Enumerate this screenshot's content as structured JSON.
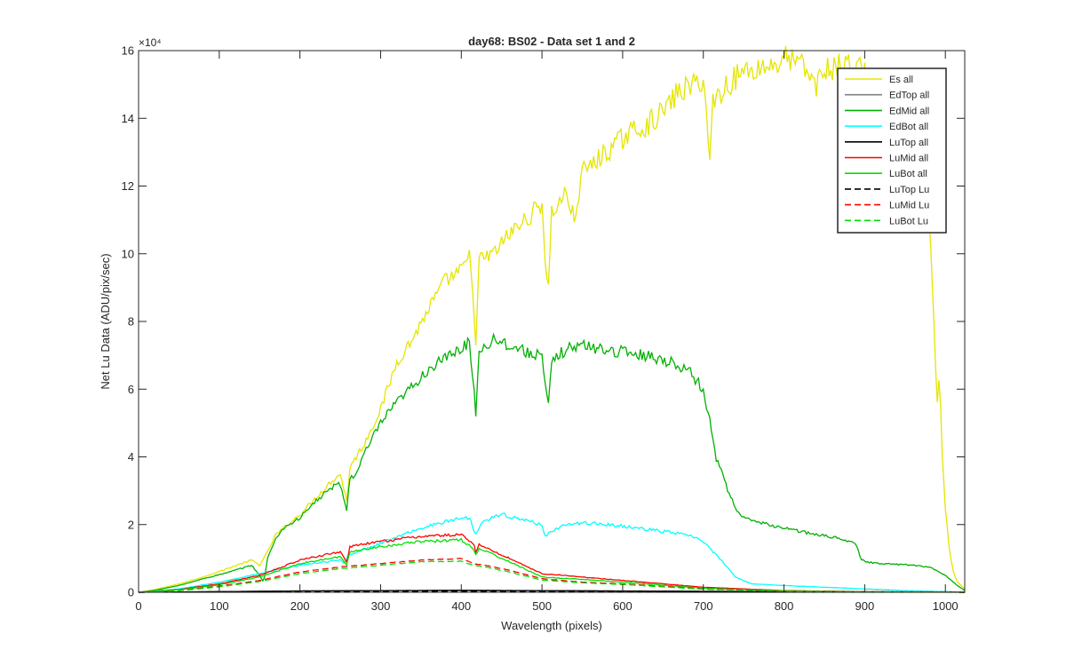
{
  "chart_data": {
    "type": "line",
    "title": "day68: BS02 - Data set 1 and 2",
    "xlabel": "Wavelength (pixels)",
    "ylabel": "Net Lu Data (ADU/pix/sec)",
    "xlim": [
      0,
      1024
    ],
    "ylim": [
      0,
      160000
    ],
    "x_ticks": [
      0,
      100,
      200,
      300,
      400,
      500,
      600,
      700,
      800,
      900,
      1000
    ],
    "y_ticks": [
      0,
      2,
      4,
      6,
      8,
      10,
      12,
      14,
      16
    ],
    "y_tick_labels": [
      "0",
      "2",
      "4",
      "6",
      "8",
      "10",
      "12",
      "14",
      "16"
    ],
    "y_exponent_label": "×10⁴",
    "y_scale_factor": 10000,
    "grid": false,
    "legend_position": "top-right",
    "series": [
      {
        "name": "Es  all",
        "color": "#E5E500",
        "dash": "solid",
        "points": [
          [
            0,
            0
          ],
          [
            20,
            800
          ],
          [
            50,
            2500
          ],
          [
            80,
            4500
          ],
          [
            110,
            7000
          ],
          [
            140,
            9500
          ],
          [
            150,
            8000
          ],
          [
            160,
            12000
          ],
          [
            170,
            17000
          ],
          [
            180,
            19000
          ],
          [
            200,
            23000
          ],
          [
            220,
            28000
          ],
          [
            240,
            33000
          ],
          [
            250,
            35000
          ],
          [
            255,
            30000
          ],
          [
            258,
            27000
          ],
          [
            262,
            37000
          ],
          [
            270,
            40000
          ],
          [
            280,
            44000
          ],
          [
            300,
            54000
          ],
          [
            320,
            68000
          ],
          [
            340,
            75000
          ],
          [
            360,
            84000
          ],
          [
            380,
            92000
          ],
          [
            400,
            95000
          ],
          [
            410,
            99000
          ],
          [
            415,
            88000
          ],
          [
            418,
            72000
          ],
          [
            422,
            98000
          ],
          [
            440,
            100000
          ],
          [
            460,
            106000
          ],
          [
            480,
            110000
          ],
          [
            500,
            115000
          ],
          [
            505,
            95000
          ],
          [
            508,
            90000
          ],
          [
            512,
            112000
          ],
          [
            530,
            118000
          ],
          [
            540,
            110000
          ],
          [
            550,
            124000
          ],
          [
            570,
            128000
          ],
          [
            590,
            132000
          ],
          [
            610,
            136000
          ],
          [
            630,
            138000
          ],
          [
            650,
            142000
          ],
          [
            670,
            148000
          ],
          [
            690,
            150000
          ],
          [
            700,
            152000
          ],
          [
            708,
            128000
          ],
          [
            712,
            145000
          ],
          [
            730,
            150000
          ],
          [
            750,
            154000
          ],
          [
            770,
            155000
          ],
          [
            790,
            156000
          ],
          [
            800,
            158000
          ],
          [
            820,
            156000
          ],
          [
            840,
            150000
          ],
          [
            850,
            154000
          ],
          [
            860,
            155000
          ],
          [
            880,
            156000
          ],
          [
            900,
            154000
          ],
          [
            920,
            150000
          ],
          [
            940,
            145000
          ],
          [
            960,
            135000
          ],
          [
            970,
            122000
          ],
          [
            980,
            110000
          ],
          [
            984,
            90000
          ],
          [
            987,
            70000
          ],
          [
            990,
            57000
          ],
          [
            993,
            66000
          ],
          [
            995,
            45000
          ],
          [
            1000,
            25000
          ],
          [
            1005,
            12000
          ],
          [
            1010,
            6000
          ],
          [
            1015,
            3000
          ],
          [
            1024,
            1000
          ]
        ]
      },
      {
        "name": "EdTop  all",
        "color": "#808080",
        "dash": "solid",
        "points": [
          [
            0,
            0
          ],
          [
            100,
            200
          ],
          [
            200,
            400
          ],
          [
            300,
            500
          ],
          [
            400,
            500
          ],
          [
            500,
            400
          ],
          [
            600,
            300
          ],
          [
            700,
            200
          ],
          [
            800,
            150
          ],
          [
            900,
            100
          ],
          [
            1000,
            50
          ],
          [
            1024,
            0
          ]
        ]
      },
      {
        "name": "EdMid  all",
        "color": "#00B000",
        "dash": "solid",
        "points": [
          [
            0,
            0
          ],
          [
            20,
            600
          ],
          [
            50,
            2000
          ],
          [
            80,
            4000
          ],
          [
            110,
            5800
          ],
          [
            140,
            8000
          ],
          [
            150,
            5000
          ],
          [
            155,
            3000
          ],
          [
            160,
            10000
          ],
          [
            170,
            16000
          ],
          [
            180,
            19000
          ],
          [
            200,
            22000
          ],
          [
            220,
            27000
          ],
          [
            240,
            31000
          ],
          [
            250,
            32000
          ],
          [
            255,
            27000
          ],
          [
            258,
            24000
          ],
          [
            262,
            34000
          ],
          [
            270,
            35000
          ],
          [
            280,
            41000
          ],
          [
            300,
            50000
          ],
          [
            320,
            56000
          ],
          [
            340,
            61000
          ],
          [
            360,
            66000
          ],
          [
            380,
            69000
          ],
          [
            400,
            72000
          ],
          [
            410,
            74000
          ],
          [
            415,
            62000
          ],
          [
            418,
            53000
          ],
          [
            422,
            71000
          ],
          [
            440,
            75000
          ],
          [
            460,
            73000
          ],
          [
            480,
            71000
          ],
          [
            500,
            70000
          ],
          [
            505,
            58000
          ],
          [
            508,
            55000
          ],
          [
            512,
            68000
          ],
          [
            530,
            72000
          ],
          [
            550,
            73000
          ],
          [
            570,
            72000
          ],
          [
            600,
            71000
          ],
          [
            630,
            70000
          ],
          [
            660,
            68000
          ],
          [
            680,
            66000
          ],
          [
            700,
            60000
          ],
          [
            710,
            48000
          ],
          [
            715,
            40000
          ],
          [
            720,
            38000
          ],
          [
            730,
            30000
          ],
          [
            745,
            23000
          ],
          [
            760,
            21000
          ],
          [
            800,
            19000
          ],
          [
            840,
            17000
          ],
          [
            870,
            16000
          ],
          [
            890,
            14000
          ],
          [
            895,
            10000
          ],
          [
            900,
            9000
          ],
          [
            920,
            8500
          ],
          [
            960,
            8000
          ],
          [
            980,
            7500
          ],
          [
            1000,
            5000
          ],
          [
            1015,
            2000
          ],
          [
            1024,
            500
          ]
        ]
      },
      {
        "name": "EdBot  all",
        "color": "#00FFFF",
        "dash": "solid",
        "points": [
          [
            0,
            0
          ],
          [
            50,
            1000
          ],
          [
            100,
            3000
          ],
          [
            150,
            5500
          ],
          [
            200,
            8000
          ],
          [
            250,
            9500
          ],
          [
            255,
            8500
          ],
          [
            260,
            11000
          ],
          [
            300,
            14500
          ],
          [
            350,
            19000
          ],
          [
            400,
            22000
          ],
          [
            410,
            22000
          ],
          [
            418,
            17000
          ],
          [
            425,
            21000
          ],
          [
            450,
            23000
          ],
          [
            500,
            20000
          ],
          [
            505,
            16000
          ],
          [
            510,
            18000
          ],
          [
            530,
            20000
          ],
          [
            560,
            20500
          ],
          [
            600,
            19500
          ],
          [
            650,
            18000
          ],
          [
            680,
            17000
          ],
          [
            700,
            15000
          ],
          [
            720,
            10000
          ],
          [
            740,
            4500
          ],
          [
            760,
            2500
          ],
          [
            800,
            2000
          ],
          [
            850,
            1500
          ],
          [
            900,
            1000
          ],
          [
            950,
            500
          ],
          [
            1000,
            200
          ],
          [
            1024,
            0
          ]
        ]
      },
      {
        "name": "LuTop  all",
        "color": "#000000",
        "dash": "solid",
        "points": [
          [
            0,
            0
          ],
          [
            100,
            200
          ],
          [
            200,
            400
          ],
          [
            300,
            500
          ],
          [
            400,
            600
          ],
          [
            500,
            500
          ],
          [
            600,
            400
          ],
          [
            700,
            300
          ],
          [
            800,
            200
          ],
          [
            900,
            100
          ],
          [
            1000,
            50
          ],
          [
            1024,
            0
          ]
        ]
      },
      {
        "name": "LuMid  all",
        "color": "#FF0000",
        "dash": "solid",
        "points": [
          [
            0,
            0
          ],
          [
            50,
            800
          ],
          [
            100,
            2500
          ],
          [
            150,
            5000
          ],
          [
            200,
            9500
          ],
          [
            250,
            12000
          ],
          [
            258,
            9000
          ],
          [
            262,
            13500
          ],
          [
            300,
            15000
          ],
          [
            350,
            16500
          ],
          [
            400,
            17000
          ],
          [
            415,
            14500
          ],
          [
            418,
            12000
          ],
          [
            422,
            14000
          ],
          [
            460,
            10000
          ],
          [
            500,
            5500
          ],
          [
            550,
            4500
          ],
          [
            600,
            3500
          ],
          [
            700,
            1500
          ],
          [
            800,
            500
          ],
          [
            900,
            200
          ],
          [
            1000,
            100
          ],
          [
            1024,
            0
          ]
        ]
      },
      {
        "name": "LuBot  all",
        "color": "#00E000",
        "dash": "solid",
        "points": [
          [
            0,
            0
          ],
          [
            50,
            700
          ],
          [
            100,
            2200
          ],
          [
            150,
            4500
          ],
          [
            200,
            8500
          ],
          [
            250,
            10500
          ],
          [
            258,
            8000
          ],
          [
            262,
            12000
          ],
          [
            300,
            13500
          ],
          [
            350,
            15000
          ],
          [
            400,
            15500
          ],
          [
            415,
            13000
          ],
          [
            418,
            11000
          ],
          [
            422,
            13000
          ],
          [
            460,
            9000
          ],
          [
            500,
            4500
          ],
          [
            550,
            3800
          ],
          [
            600,
            3000
          ],
          [
            700,
            1200
          ],
          [
            800,
            400
          ],
          [
            900,
            150
          ],
          [
            1000,
            80
          ],
          [
            1024,
            0
          ]
        ]
      },
      {
        "name": "LuTop  Lu",
        "color": "#000000",
        "dash": "dashed",
        "points": [
          [
            0,
            0
          ],
          [
            100,
            100
          ],
          [
            200,
            200
          ],
          [
            300,
            300
          ],
          [
            400,
            300
          ],
          [
            500,
            250
          ],
          [
            600,
            200
          ],
          [
            700,
            150
          ],
          [
            800,
            100
          ],
          [
            900,
            50
          ],
          [
            1000,
            30
          ],
          [
            1024,
            0
          ]
        ]
      },
      {
        "name": "LuMid  Lu",
        "color": "#FF0000",
        "dash": "dashed",
        "points": [
          [
            0,
            0
          ],
          [
            50,
            500
          ],
          [
            100,
            1800
          ],
          [
            150,
            3500
          ],
          [
            200,
            6000
          ],
          [
            250,
            7500
          ],
          [
            300,
            8500
          ],
          [
            350,
            9500
          ],
          [
            400,
            10000
          ],
          [
            415,
            8500
          ],
          [
            430,
            8000
          ],
          [
            460,
            6500
          ],
          [
            500,
            4000
          ],
          [
            550,
            3000
          ],
          [
            600,
            2500
          ],
          [
            700,
            1000
          ],
          [
            800,
            400
          ],
          [
            900,
            150
          ],
          [
            1000,
            60
          ],
          [
            1024,
            0
          ]
        ]
      },
      {
        "name": "LuBot  Lu",
        "color": "#00E000",
        "dash": "dashed",
        "points": [
          [
            0,
            0
          ],
          [
            50,
            450
          ],
          [
            100,
            1600
          ],
          [
            150,
            3200
          ],
          [
            200,
            5500
          ],
          [
            250,
            7000
          ],
          [
            300,
            8000
          ],
          [
            350,
            9000
          ],
          [
            400,
            9200
          ],
          [
            415,
            8000
          ],
          [
            430,
            7500
          ],
          [
            460,
            6000
          ],
          [
            500,
            3600
          ],
          [
            550,
            2800
          ],
          [
            600,
            2300
          ],
          [
            700,
            900
          ],
          [
            800,
            350
          ],
          [
            900,
            120
          ],
          [
            1000,
            50
          ],
          [
            1024,
            0
          ]
        ]
      }
    ]
  }
}
